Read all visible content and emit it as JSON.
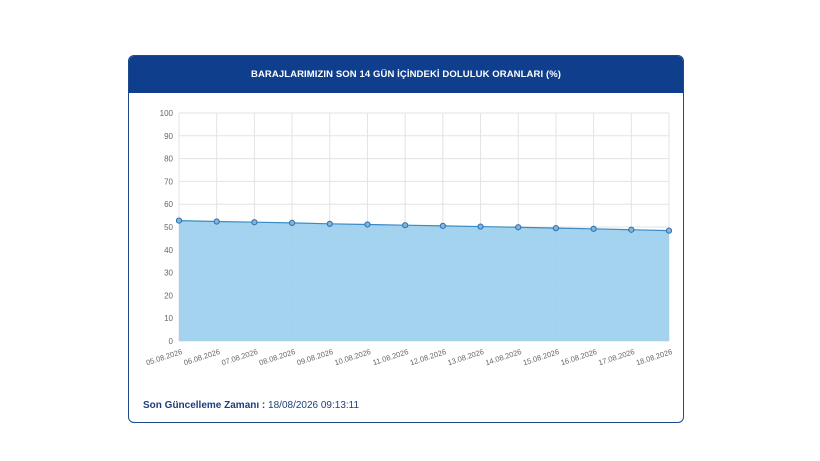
{
  "card": {
    "title": "BARAJLARIMIZIN SON 14 GÜN İÇİNDEKİ DOLULUK ORANLARI (%)"
  },
  "update": {
    "label": "Son Güncelleme Zamanı :",
    "value": "18/08/2026 09:13:11"
  },
  "colors": {
    "header": "#0f3f8c",
    "area": "#9fd1ee",
    "line": "#3a8cc4",
    "point": "#7fb6e0"
  },
  "chart_data": {
    "type": "area",
    "x": [
      "05.08.2026",
      "06.08.2026",
      "07.08.2026",
      "08.08.2026",
      "09.08.2026",
      "10.08.2026",
      "11.08.2026",
      "12.08.2026",
      "13.08.2026",
      "14.08.2026",
      "15.08.2026",
      "16.08.2026",
      "17.08.2026",
      "18.08.2026"
    ],
    "series": [
      {
        "values": [
          52.8,
          52.4,
          52.1,
          51.8,
          51.4,
          51.1,
          50.8,
          50.5,
          50.2,
          49.9,
          49.5,
          49.2,
          48.8,
          48.4
        ]
      }
    ],
    "ylim": [
      0,
      100
    ],
    "yticks": [
      0,
      10,
      20,
      30,
      40,
      50,
      60,
      70,
      80,
      90,
      100
    ],
    "grid": true
  }
}
